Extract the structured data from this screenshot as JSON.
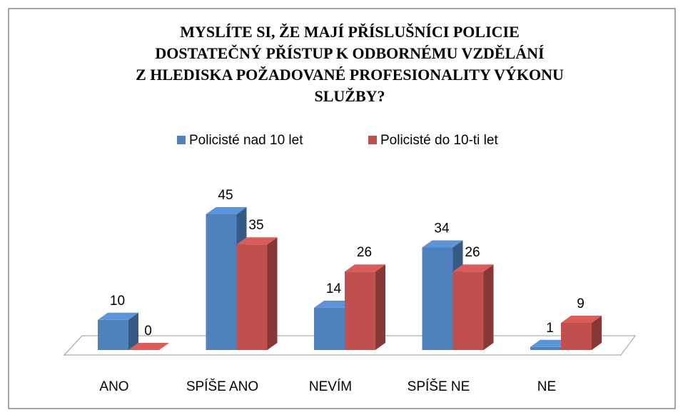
{
  "chart_data": {
    "type": "bar3d",
    "title": [
      "MYSLÍTE SI, ŽE MAJÍ PŘÍSLUŠNÍCI POLICIE",
      "DOSTATEČNÝ PŘÍSTUP K ODBORNÉMU VZDĚLÁNÍ",
      "Z HLEDISKA POŽADOVANÉ PROFESIONALITY VÝKONU",
      "SLUŽBY?"
    ],
    "categories": [
      "ANO",
      "SPÍŠE ANO",
      "NEVÍM",
      "SPÍŠE NE",
      "NE"
    ],
    "series": [
      {
        "name": "Policisté nad 10 let",
        "color": "#4f81bd",
        "values": [
          10,
          45,
          14,
          34,
          1
        ]
      },
      {
        "name": "Policisté do 10-ti let",
        "color": "#c0504d",
        "values": [
          0,
          35,
          26,
          26,
          9
        ]
      }
    ],
    "legend": "top"
  }
}
